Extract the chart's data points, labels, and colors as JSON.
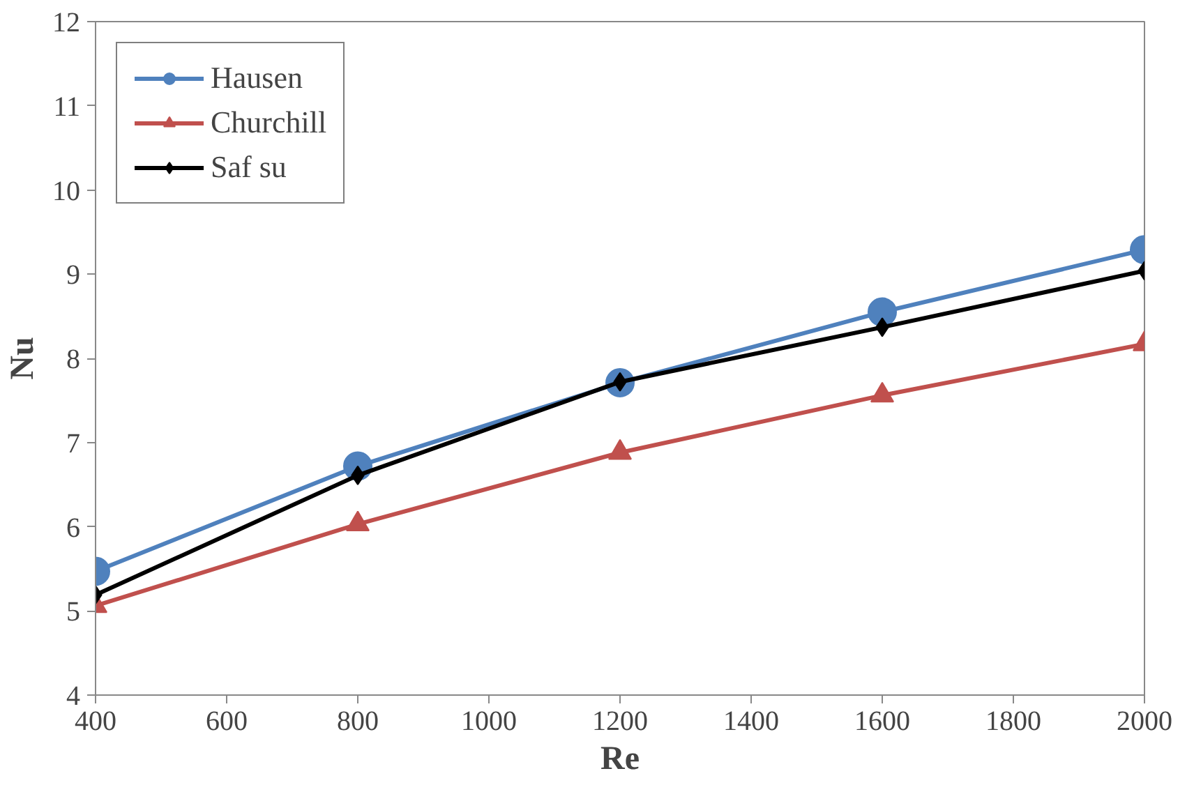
{
  "chart_data": {
    "type": "line",
    "xlabel": "Re",
    "ylabel": "Nu",
    "x": [
      400,
      800,
      1200,
      1600,
      2000
    ],
    "series": [
      {
        "name": "Hausen",
        "color": "#4f81bd",
        "marker": "circle",
        "values": [
          5.47,
          6.72,
          7.71,
          8.55,
          9.29
        ]
      },
      {
        "name": "Churchill",
        "color": "#c0504d",
        "marker": "triangle",
        "values": [
          5.06,
          6.03,
          6.88,
          7.56,
          8.17
        ]
      },
      {
        "name": "Saf su",
        "color": "#000000",
        "marker": "diamond",
        "values": [
          5.19,
          6.61,
          7.72,
          8.37,
          9.04
        ]
      }
    ],
    "xlim": [
      400,
      2000
    ],
    "xticks": [
      400,
      600,
      800,
      1000,
      1200,
      1400,
      1600,
      1800,
      2000
    ],
    "ylim": [
      4,
      12
    ],
    "yticks": [
      4,
      5,
      6,
      7,
      8,
      9,
      10,
      11,
      12
    ],
    "grid": false,
    "legend": "top left",
    "line_style": "solid"
  }
}
